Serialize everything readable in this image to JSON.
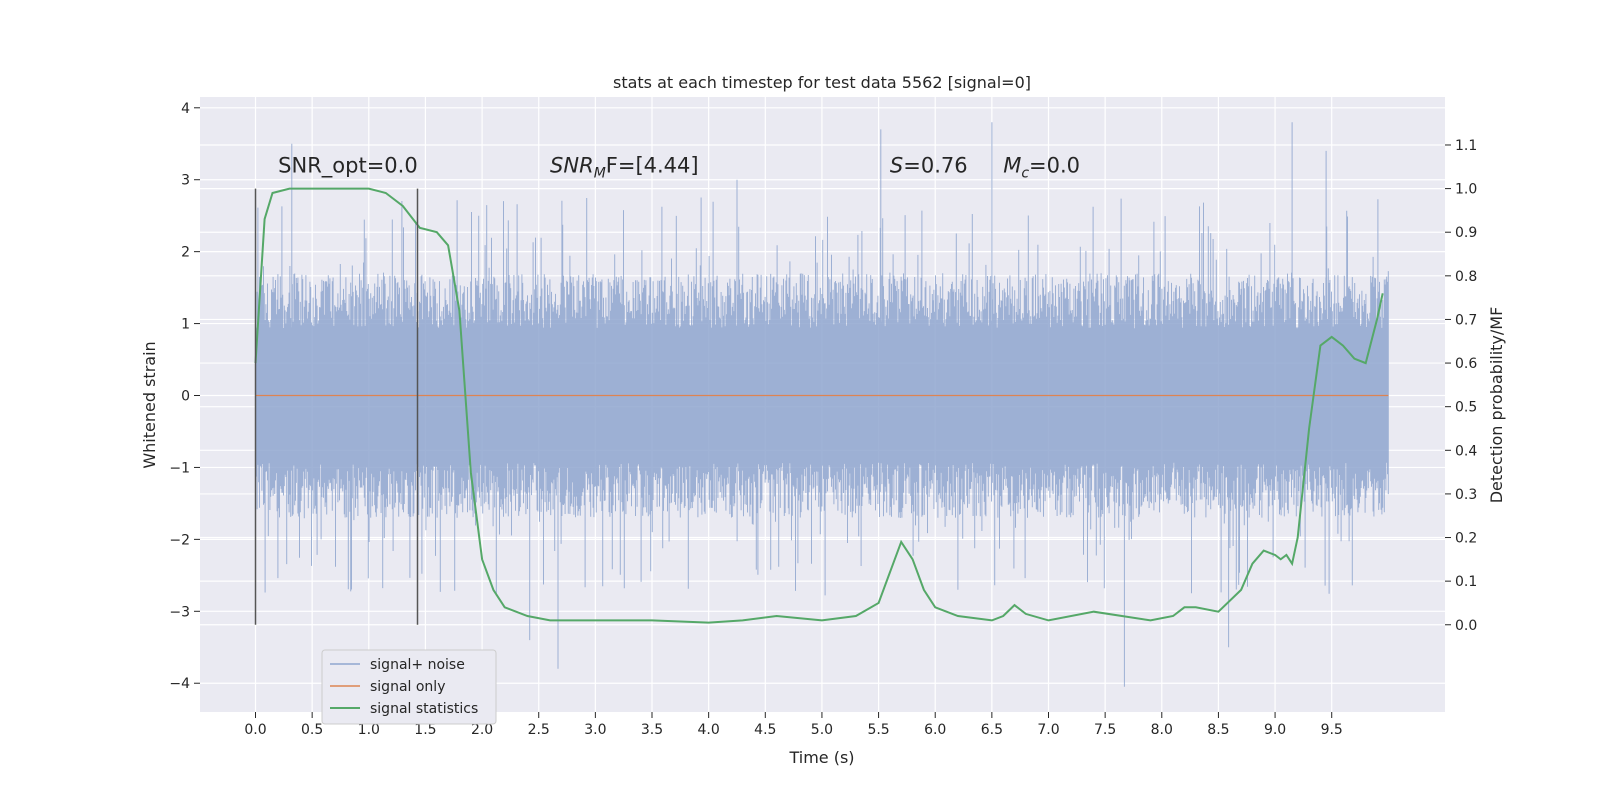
{
  "chart_data": {
    "type": "line",
    "title": "stats at each timestep for test data 5562 [signal=0]",
    "xlabel": "Time (s)",
    "ylabel": "Whitened strain",
    "y2label": "Detection probability/MF",
    "xlim": [
      -0.49,
      10.5
    ],
    "ylim": [
      -4.4,
      4.15
    ],
    "y2lim": [
      -0.2,
      1.21
    ],
    "x_ticks": [
      0.0,
      0.5,
      1.0,
      1.5,
      2.0,
      2.5,
      3.0,
      3.5,
      4.0,
      4.5,
      5.0,
      5.5,
      6.0,
      6.5,
      7.0,
      7.5,
      8.0,
      8.5,
      9.0,
      9.5
    ],
    "x_tick_labels": [
      "0.0",
      "0.5",
      "1.0",
      "1.5",
      "2.0",
      "2.5",
      "3.0",
      "3.5",
      "4.0",
      "4.5",
      "5.0",
      "5.5",
      "6.0",
      "6.5",
      "7.0",
      "7.5",
      "8.0",
      "8.5",
      "9.0",
      "9.5"
    ],
    "y_ticks": [
      4,
      3,
      2,
      1,
      0,
      -1,
      -2,
      -3,
      -4
    ],
    "y_tick_labels": [
      "4",
      "3",
      "2",
      "1",
      "0",
      "−1",
      "−2",
      "−3",
      "−4"
    ],
    "y2_ticks": [
      1.1,
      1.0,
      0.9,
      0.8,
      0.7,
      0.6,
      0.5,
      0.4,
      0.3,
      0.2,
      0.1,
      0.0
    ],
    "y2_tick_labels": [
      "1.1",
      "1.0",
      "0.9",
      "0.8",
      "0.7",
      "0.6",
      "0.5",
      "0.4",
      "0.3",
      "0.2",
      "0.1",
      "0.0"
    ],
    "grid": true,
    "legend_position": "lower-left",
    "series": [
      {
        "name": "signal+ noise",
        "color": "#8fa6cf",
        "kind": "dense noise, 0.0 to 10.0 s",
        "typical_range": [
          -1.7,
          1.7
        ],
        "peaks": [
          [
            0.32,
            3.5
          ],
          [
            2.42,
            -3.4
          ],
          [
            2.67,
            -3.8
          ],
          [
            4.25,
            3.0
          ],
          [
            5.52,
            3.7
          ],
          [
            6.5,
            3.8
          ],
          [
            7.67,
            -4.05
          ],
          [
            8.59,
            -3.5
          ],
          [
            9.15,
            3.8
          ],
          [
            9.45,
            3.4
          ]
        ]
      },
      {
        "name": "signal only",
        "color": "#dd8452",
        "x": [
          0.0,
          10.0
        ],
        "y": [
          0.0,
          0.0
        ]
      },
      {
        "name": "signal statistics",
        "color": "#55a868",
        "axis": "right",
        "x": [
          0.0,
          0.08,
          0.15,
          0.3,
          0.6,
          1.0,
          1.15,
          1.3,
          1.45,
          1.6,
          1.7,
          1.8,
          1.9,
          2.0,
          2.1,
          2.2,
          2.4,
          2.6,
          3.0,
          3.5,
          4.0,
          4.3,
          4.6,
          5.0,
          5.3,
          5.5,
          5.6,
          5.7,
          5.8,
          5.9,
          6.0,
          6.2,
          6.5,
          6.6,
          6.7,
          6.8,
          7.0,
          7.4,
          7.9,
          8.1,
          8.2,
          8.3,
          8.5,
          8.7,
          8.8,
          8.9,
          9.0,
          9.05,
          9.1,
          9.15,
          9.2,
          9.3,
          9.4,
          9.5,
          9.6,
          9.7,
          9.8,
          9.9,
          9.95
        ],
        "y": [
          0.6,
          0.93,
          0.99,
          1.0,
          1.0,
          1.0,
          0.99,
          0.96,
          0.91,
          0.9,
          0.87,
          0.72,
          0.35,
          0.15,
          0.08,
          0.04,
          0.02,
          0.01,
          0.01,
          0.01,
          0.005,
          0.01,
          0.02,
          0.01,
          0.02,
          0.05,
          0.12,
          0.19,
          0.15,
          0.08,
          0.04,
          0.02,
          0.01,
          0.02,
          0.045,
          0.025,
          0.01,
          0.03,
          0.01,
          0.02,
          0.04,
          0.04,
          0.03,
          0.08,
          0.14,
          0.17,
          0.16,
          0.15,
          0.16,
          0.14,
          0.2,
          0.45,
          0.64,
          0.66,
          0.64,
          0.61,
          0.6,
          0.7,
          0.76
        ]
      }
    ],
    "vertical_lines_x": [
      0.0,
      1.43
    ],
    "annotations": [
      {
        "text": "SNR_opt=0.0",
        "x": 0.2,
        "y": 3.1
      },
      {
        "main": "SNR",
        "sub": "M",
        "tail": "F=[4.44]",
        "x": 2.6,
        "y": 3.1
      },
      {
        "main": "S",
        "tail": "=0.76",
        "x": 5.6,
        "y": 3.1
      },
      {
        "main": "M",
        "sub": "c",
        "tail": "=0.0",
        "x": 6.6,
        "y": 3.1
      }
    ]
  }
}
